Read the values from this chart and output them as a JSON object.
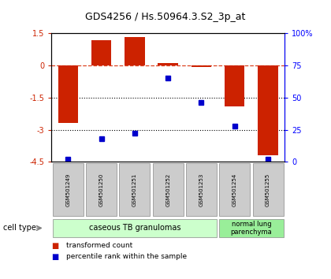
{
  "title": "GDS4256 / Hs.50964.3.S2_3p_at",
  "samples": [
    "GSM501249",
    "GSM501250",
    "GSM501251",
    "GSM501252",
    "GSM501253",
    "GSM501254",
    "GSM501255"
  ],
  "transformed_count": [
    -2.7,
    1.2,
    1.35,
    0.1,
    -0.05,
    -1.9,
    -4.2
  ],
  "percentile_rank": [
    2,
    18,
    22,
    65,
    46,
    28,
    2
  ],
  "ylim_left": [
    -4.5,
    1.5
  ],
  "ylim_right": [
    0,
    100
  ],
  "yticks_left": [
    1.5,
    0,
    -1.5,
    -3,
    -4.5
  ],
  "yticks_right": [
    100,
    75,
    50,
    25,
    0
  ],
  "ytick_labels_left": [
    "1.5",
    "0",
    "-1.5",
    "-3",
    "-4.5"
  ],
  "ytick_labels_right": [
    "100%",
    "75",
    "50",
    "25",
    "0"
  ],
  "bar_color": "#cc2200",
  "dot_color": "#0000cc",
  "group1_label": "caseous TB granulomas",
  "group1_count": 5,
  "group2_label": "normal lung\nparenchyma",
  "group2_count": 2,
  "cell_type_label": "cell type",
  "legend_bar": "transformed count",
  "legend_dot": "percentile rank within the sample",
  "group1_color": "#ccffcc",
  "group2_color": "#99ee99",
  "sample_box_color": "#cccccc",
  "background_color": "#ffffff"
}
